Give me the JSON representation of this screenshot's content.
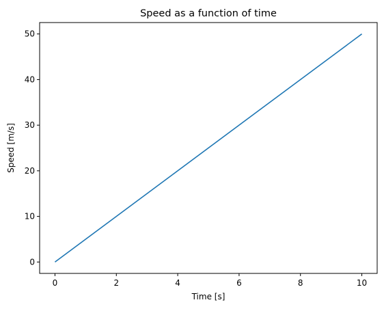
{
  "chart_data": {
    "type": "line",
    "title": "Speed as a function of time",
    "xlabel": "Time [s]",
    "ylabel": "Speed [m/s]",
    "xlim": [
      -0.5,
      10.5
    ],
    "ylim": [
      -2.5,
      52.5
    ],
    "xticks": [
      0,
      2,
      4,
      6,
      8,
      10
    ],
    "yticks": [
      0,
      10,
      20,
      30,
      40,
      50
    ],
    "grid": false,
    "series": [
      {
        "color": "#1f77b4",
        "x": [
          0,
          10
        ],
        "y": [
          0,
          50
        ]
      }
    ]
  }
}
